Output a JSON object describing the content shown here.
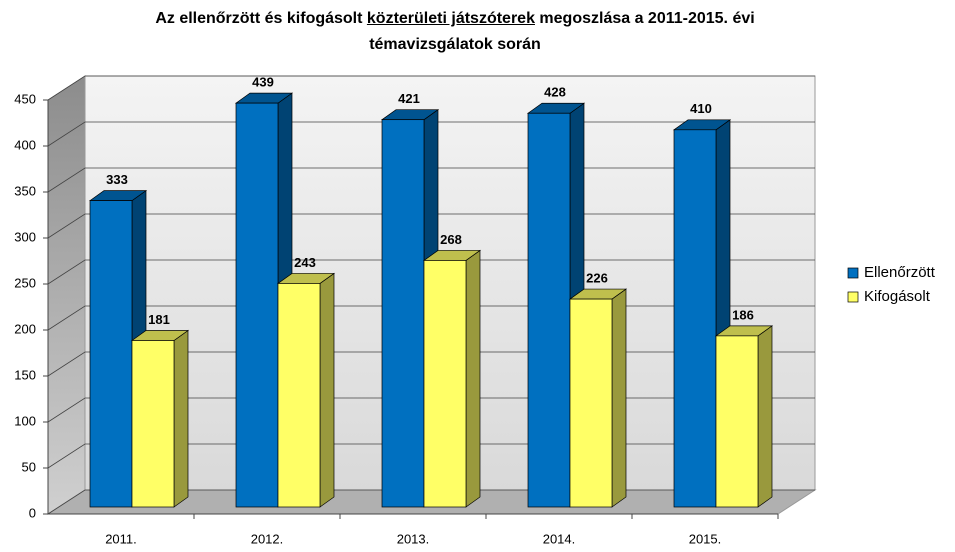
{
  "chart_data": {
    "type": "bar3d",
    "title": [
      "Az ellenőrzött és kifogásolt",
      "közterületi játszóterek",
      "megoszlása a 2011-2015. évi",
      "témavizsgálatok során"
    ],
    "categories": [
      "2011.",
      "2012.",
      "2013.",
      "2014.",
      "2015."
    ],
    "series": [
      {
        "name": "Ellenőrzött",
        "color": "#0070c0",
        "values": [
          333,
          439,
          421,
          428,
          410
        ]
      },
      {
        "name": "Kifogásolt",
        "color": "#ffff66",
        "values": [
          181,
          243,
          268,
          226,
          186
        ]
      }
    ],
    "ylim": [
      0,
      450
    ],
    "yticks": [
      0,
      50,
      100,
      150,
      200,
      250,
      300,
      350,
      400,
      450
    ],
    "grid": true,
    "legend": "right"
  }
}
